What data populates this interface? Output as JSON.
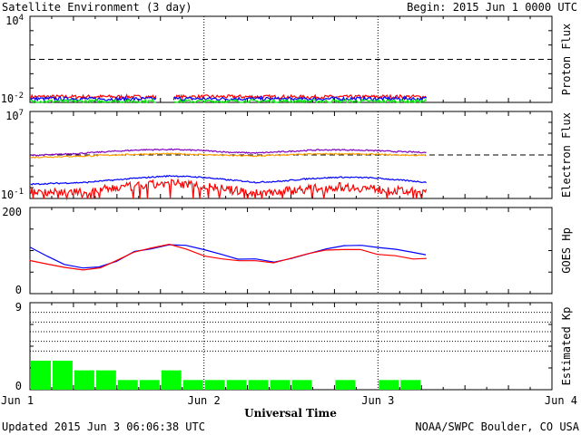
{
  "header": {
    "title": "Satellite Environment (3 day)",
    "begin": "Begin:  2015 Jun 1 0000 UTC"
  },
  "footer": {
    "updated": "Updated 2015 Jun  3 06:06:38 UTC",
    "credit": "NOAA/SWPC Boulder, CO USA"
  },
  "xaxis": {
    "label": "Universal Time",
    "ticks": [
      "Jun 1",
      "Jun 2",
      "Jun 3",
      "Jun 4"
    ],
    "range_days": [
      0,
      3
    ]
  },
  "colors": {
    "red": "#ff0000",
    "blue": "#0000ff",
    "green": "#00ee00",
    "purple": "#8000c0",
    "orange": "#ffa000",
    "kp_bar": "#00ff00"
  },
  "chart_data": [
    {
      "type": "line",
      "panel": "proton",
      "ylabel": "Proton Flux",
      "scale": "log",
      "ylim": [
        0.01,
        10000
      ],
      "yticks": [
        {
          "base": "10",
          "exp": "4"
        },
        {
          "base": "10",
          "exp": "-2"
        }
      ],
      "threshold": 10,
      "data_end_day": 2.28,
      "gap": [
        0.73,
        0.82
      ],
      "series": [
        {
          "color": "red",
          "values": [
            0.025,
            0.025,
            0.025,
            0.024,
            0.025,
            0.025,
            0.024,
            0.024,
            0.025,
            0.025
          ]
        },
        {
          "color": "blue",
          "values": [
            0.018,
            0.018,
            0.017,
            0.018,
            0.018,
            0.018,
            0.017,
            0.018,
            0.018,
            0.018
          ]
        },
        {
          "color": "green",
          "values": [
            0.012,
            0.012,
            0.012,
            0.012,
            0.012,
            0.012,
            0.012,
            0.012,
            0.012,
            0.012
          ]
        }
      ]
    },
    {
      "type": "line",
      "panel": "electron",
      "ylabel": "Electron Flux",
      "scale": "log",
      "ylim": [
        0.1,
        10000000
      ],
      "yticks": [
        {
          "base": "10",
          "exp": "7"
        },
        {
          "base": "10",
          "exp": "-1"
        }
      ],
      "threshold": 1000,
      "data_end_day": 2.28,
      "series": [
        {
          "color": "purple",
          "values": [
            900,
            1100,
            1500,
            2200,
            3000,
            3200,
            2600,
            1800,
            1500,
            2000,
            2800,
            3000,
            2600,
            2000,
            1700
          ]
        },
        {
          "color": "orange",
          "values": [
            600,
            700,
            800,
            1000,
            1200,
            1300,
            1100,
            900,
            800,
            1000,
            1200,
            1300,
            1150,
            1000,
            900
          ]
        },
        {
          "color": "blue",
          "values": [
            2,
            2.5,
            3,
            5,
            8,
            12,
            9,
            5,
            3,
            4,
            7,
            9,
            8,
            5,
            3
          ]
        },
        {
          "color": "red",
          "values": [
            0.5,
            0.4,
            0.3,
            0.9,
            1.5,
            2.5,
            1.5,
            0.6,
            0.3,
            0.5,
            0.8,
            1.2,
            0.8,
            0.5,
            0.3
          ]
        }
      ]
    },
    {
      "type": "line",
      "panel": "goes-hp",
      "ylabel": "GOES Hp",
      "scale": "linear",
      "ylim": [
        0,
        200
      ],
      "yticks": [
        "200",
        "0"
      ],
      "data_end_day": 2.28,
      "series": [
        {
          "color": "blue",
          "x": [
            0,
            0.1,
            0.2,
            0.3,
            0.4,
            0.5,
            0.6,
            0.7,
            0.8,
            0.9,
            1.0,
            1.1,
            1.2,
            1.3,
            1.4,
            1.5,
            1.6,
            1.7,
            1.8,
            1.9,
            2.0,
            2.1,
            2.2,
            2.28
          ],
          "values": [
            110,
            90,
            65,
            60,
            65,
            75,
            95,
            105,
            115,
            110,
            100,
            90,
            82,
            78,
            75,
            82,
            92,
            102,
            110,
            115,
            110,
            102,
            95,
            92
          ]
        },
        {
          "color": "red",
          "x": [
            0,
            0.1,
            0.2,
            0.3,
            0.4,
            0.5,
            0.6,
            0.7,
            0.8,
            0.9,
            1.0,
            1.1,
            1.2,
            1.3,
            1.4,
            1.5,
            1.6,
            1.7,
            1.8,
            1.9,
            2.0,
            2.1,
            2.2,
            2.28
          ],
          "values": [
            75,
            70,
            60,
            55,
            60,
            75,
            95,
            108,
            112,
            100,
            90,
            82,
            78,
            74,
            72,
            80,
            90,
            100,
            105,
            100,
            92,
            86,
            82,
            83
          ]
        }
      ]
    },
    {
      "type": "bar",
      "panel": "kp",
      "ylabel": "Estimated Kp",
      "scale": "linear",
      "ylim": [
        0,
        9
      ],
      "yticks": [
        "9",
        "0"
      ],
      "gridlines": [
        5,
        4,
        6,
        7,
        8
      ],
      "bar_width_hours": 3,
      "values": [
        3,
        3,
        2,
        2,
        1,
        1,
        2,
        1,
        1,
        1,
        1,
        1,
        1,
        0,
        1,
        0,
        1,
        1
      ]
    }
  ]
}
